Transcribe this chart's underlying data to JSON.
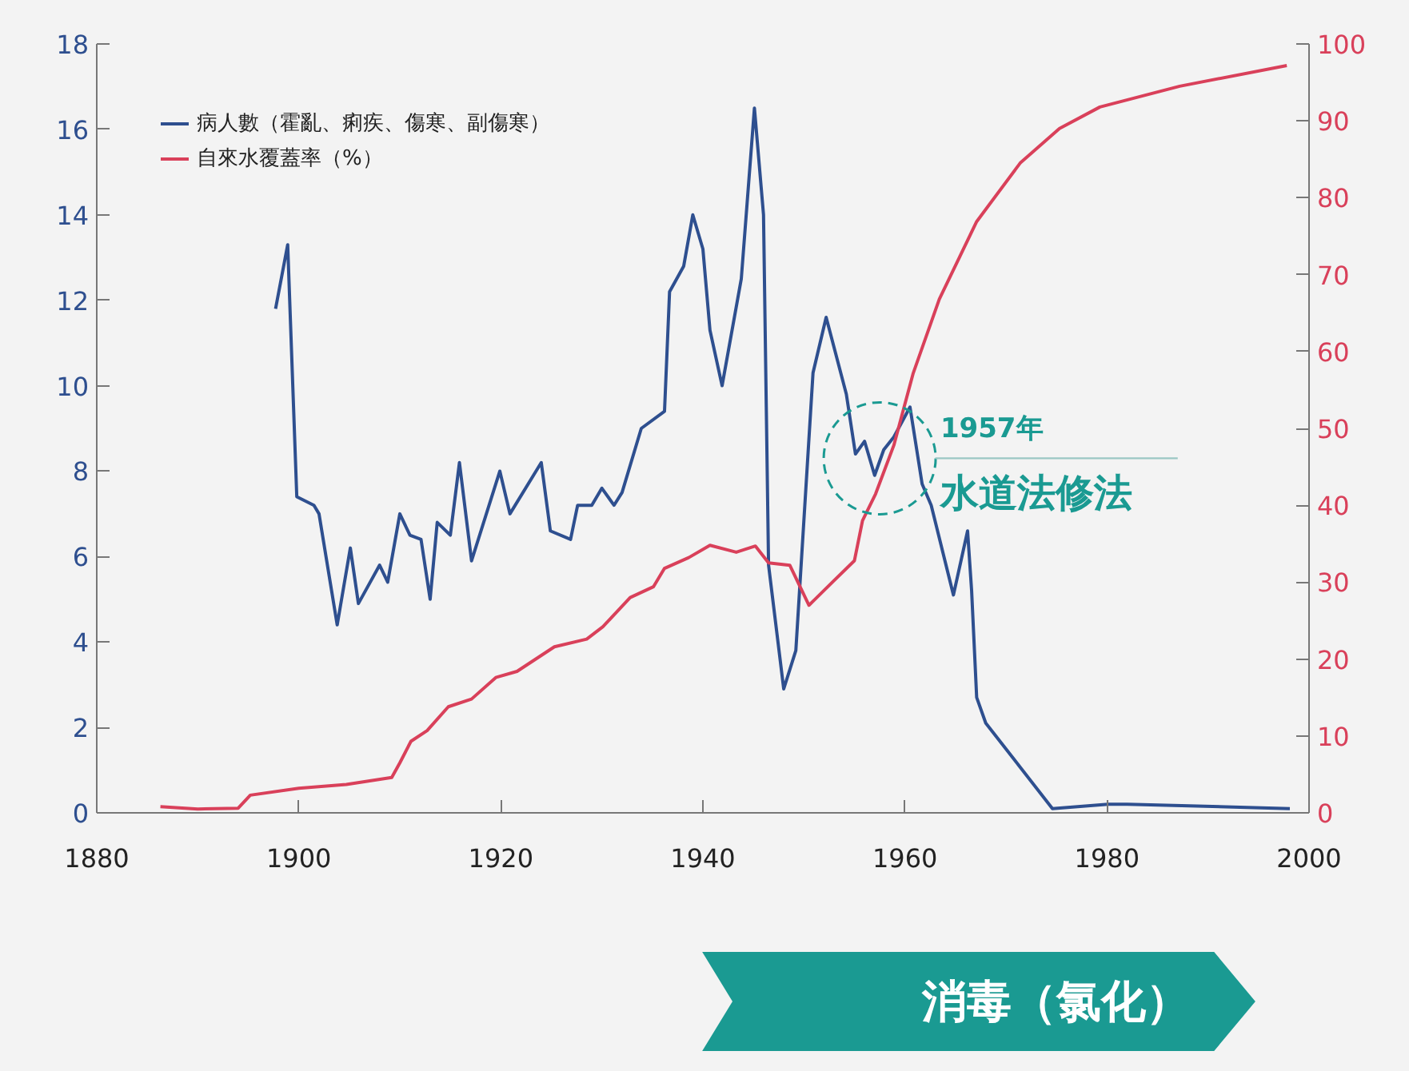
{
  "chart_data": {
    "type": "line",
    "xlim": [
      1880,
      2000
    ],
    "xticks": [
      1880,
      1900,
      1920,
      1940,
      1960,
      1980,
      2000
    ],
    "ylim": [
      0,
      18
    ],
    "yticks": [
      0,
      2,
      4,
      6,
      8,
      10,
      12,
      14,
      16,
      18
    ],
    "y2lim": [
      0,
      100
    ],
    "y2ticks": [
      0,
      10,
      20,
      30,
      40,
      50,
      60,
      70,
      80,
      90,
      100
    ],
    "grid": false,
    "legend": "top left",
    "series": [
      {
        "name": "病人數（霍亂、痢疾、傷寒、副傷寒）",
        "color": "#2e4f8f",
        "x": [
          1897.7,
          1898.9,
          1899.8,
          1901.5,
          1902,
          1903.8,
          1905.1,
          1905.9,
          1908,
          1908.8,
          1910,
          1911,
          1912.1,
          1913,
          1913.7,
          1915,
          1915.9,
          1917.1,
          1919.9,
          1920.9,
          1924,
          1924.9,
          1926.9,
          1927.6,
          1929,
          1930,
          1931.2,
          1932,
          1933.9,
          1936.2,
          1936.7,
          1938.1,
          1939,
          1940,
          1940.7,
          1941.9,
          1943.8,
          1945.1,
          1946,
          1946.5,
          1948,
          1949.2,
          1950.9,
          1952.2,
          1954.2,
          1955.1,
          1956,
          1957,
          1957.9,
          1958.9,
          1960.5,
          1961.7,
          1962.6,
          1964.8,
          1966.2,
          1966.6,
          1967.1,
          1968,
          1974.6,
          1980.1,
          1982,
          1998.1
        ],
        "values": [
          11.8,
          13.3,
          7.4,
          7.2,
          7.0,
          4.4,
          6.2,
          4.9,
          5.8,
          5.4,
          7.0,
          6.5,
          6.4,
          5.0,
          6.8,
          6.5,
          8.2,
          5.9,
          8.0,
          7.0,
          8.2,
          6.6,
          6.4,
          7.2,
          7.2,
          7.6,
          7.2,
          7.5,
          9.0,
          9.4,
          12.2,
          12.8,
          14.0,
          13.2,
          11.3,
          10.0,
          12.5,
          16.5,
          14.0,
          5.8,
          2.9,
          3.8,
          10.3,
          11.6,
          9.8,
          8.4,
          8.7,
          7.9,
          8.5,
          8.8,
          9.5,
          7.7,
          7.2,
          5.1,
          6.6,
          5.2,
          2.7,
          2.1,
          0.1,
          0.2,
          0.2,
          0.1
        ]
      },
      {
        "name": "自來水覆蓋率（%）",
        "color": "#d9405a",
        "axis": "y2",
        "x": [
          1886.3,
          1890,
          1894,
          1895.2,
          1900,
          1904.7,
          1909.2,
          1910,
          1911.1,
          1912.7,
          1914.8,
          1917.1,
          1919.5,
          1921.6,
          1925.3,
          1928.5,
          1930.1,
          1932.8,
          1935.1,
          1936.2,
          1938.6,
          1940.7,
          1943.3,
          1945.2,
          1946.5,
          1948.6,
          1950.5,
          1952.9,
          1955,
          1955.8,
          1957.1,
          1958.9,
          1960.8,
          1963.4,
          1967.1,
          1971.4,
          1975.3,
          1979.3,
          1987.2,
          1997.8
        ],
        "values": [
          0.8,
          0.5,
          0.6,
          2.3,
          3.2,
          3.7,
          4.6,
          6.5,
          9.3,
          10.7,
          13.8,
          14.8,
          17.6,
          18.4,
          21.6,
          22.6,
          24.2,
          28,
          29.4,
          31.8,
          33.2,
          34.8,
          33.9,
          34.7,
          32.5,
          32.2,
          27,
          30.1,
          32.8,
          38,
          41.5,
          47.8,
          57.1,
          66.8,
          76.9,
          84.5,
          89,
          91.8,
          94.5,
          97.2
        ]
      }
    ],
    "annotations": [
      {
        "text": "1957年",
        "x": 1957.5,
        "y": 8.3
      },
      "水道法修法",
      "消毒（氯化）"
    ]
  }
}
